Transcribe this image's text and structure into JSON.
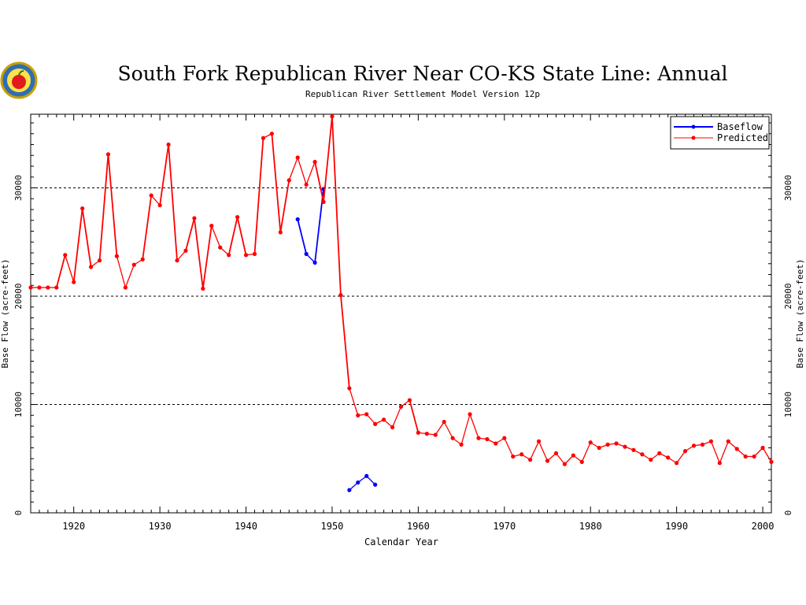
{
  "chart_data": {
    "type": "line",
    "title": "South Fork Republican River Near CO-KS State Line: Annual",
    "subtitle": "Republican River Settlement Model Version 12p",
    "xlabel": "Calendar Year",
    "ylabel": "Base Flow (acre-feet)",
    "xlim": [
      1915,
      2001
    ],
    "ylim": [
      0,
      36800
    ],
    "x_ticks": [
      1920,
      1930,
      1940,
      1950,
      1960,
      1970,
      1980,
      1990,
      2000
    ],
    "y_ticks": [
      0,
      10000,
      20000,
      30000
    ],
    "grid": "horizontal dashed at 10000, 20000, 30000",
    "legend_position": "top-right",
    "series": [
      {
        "name": "Baseflow",
        "color": "#0000ff",
        "segments": [
          [
            [
              1946,
              27100
            ],
            [
              1947,
              23900
            ],
            [
              1948,
              23100
            ],
            [
              1949,
              29900
            ]
          ],
          [
            [
              1952,
              2100
            ],
            [
              1953,
              2800
            ],
            [
              1954,
              3400
            ],
            [
              1955,
              2600
            ]
          ]
        ]
      },
      {
        "name": "Predicted",
        "color": "#ff0000",
        "segments": [
          [
            [
              1915,
              20800
            ],
            [
              1916,
              20800
            ],
            [
              1917,
              20800
            ],
            [
              1918,
              20800
            ],
            [
              1919,
              23800
            ],
            [
              1920,
              21300
            ],
            [
              1921,
              28100
            ],
            [
              1922,
              22700
            ],
            [
              1923,
              23300
            ],
            [
              1924,
              33100
            ],
            [
              1925,
              23700
            ],
            [
              1926,
              20800
            ],
            [
              1927,
              22900
            ],
            [
              1928,
              23400
            ],
            [
              1929,
              29300
            ],
            [
              1930,
              28400
            ],
            [
              1931,
              34000
            ],
            [
              1932,
              23300
            ],
            [
              1933,
              24200
            ],
            [
              1934,
              27200
            ],
            [
              1935,
              20700
            ],
            [
              1936,
              26500
            ],
            [
              1937,
              24500
            ],
            [
              1938,
              23800
            ],
            [
              1939,
              27300
            ],
            [
              1940,
              23800
            ],
            [
              1941,
              23900
            ],
            [
              1942,
              34600
            ],
            [
              1943,
              35000
            ],
            [
              1944,
              25900
            ],
            [
              1945,
              30700
            ],
            [
              1946,
              32800
            ],
            [
              1947,
              30300
            ],
            [
              1948,
              32400
            ],
            [
              1949,
              28700
            ],
            [
              1950,
              36600
            ],
            [
              1951,
              20100
            ],
            [
              1952,
              11500
            ],
            [
              1953,
              9000
            ],
            [
              1954,
              9100
            ],
            [
              1955,
              8200
            ],
            [
              1956,
              8600
            ],
            [
              1957,
              7900
            ],
            [
              1958,
              9800
            ],
            [
              1959,
              10400
            ],
            [
              1960,
              7400
            ],
            [
              1961,
              7300
            ],
            [
              1962,
              7200
            ],
            [
              1963,
              8400
            ],
            [
              1964,
              6900
            ],
            [
              1965,
              6300
            ],
            [
              1966,
              9100
            ],
            [
              1967,
              6900
            ],
            [
              1968,
              6800
            ],
            [
              1969,
              6400
            ],
            [
              1970,
              6900
            ],
            [
              1971,
              5200
            ],
            [
              1972,
              5400
            ],
            [
              1973,
              4900
            ],
            [
              1974,
              6600
            ],
            [
              1975,
              4800
            ],
            [
              1976,
              5500
            ],
            [
              1977,
              4500
            ],
            [
              1978,
              5300
            ],
            [
              1979,
              4700
            ],
            [
              1980,
              6500
            ],
            [
              1981,
              6000
            ],
            [
              1982,
              6300
            ],
            [
              1983,
              6400
            ],
            [
              1984,
              6100
            ],
            [
              1985,
              5800
            ],
            [
              1986,
              5400
            ],
            [
              1987,
              4900
            ],
            [
              1988,
              5500
            ],
            [
              1989,
              5100
            ],
            [
              1990,
              4600
            ],
            [
              1991,
              5700
            ],
            [
              1992,
              6200
            ],
            [
              1993,
              6300
            ],
            [
              1994,
              6600
            ],
            [
              1995,
              4600
            ],
            [
              1996,
              6600
            ],
            [
              1997,
              5900
            ],
            [
              1998,
              5200
            ],
            [
              1999,
              5200
            ],
            [
              2000,
              6000
            ],
            [
              2001,
              4700
            ]
          ]
        ]
      }
    ]
  }
}
